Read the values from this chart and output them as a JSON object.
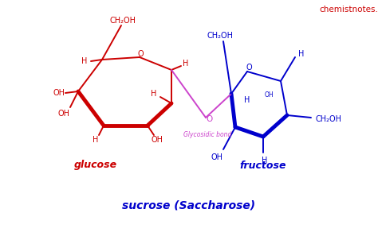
{
  "bg_color": "#ffffff",
  "website_text": "chemistnotes.com",
  "website_color": "#cc0000",
  "glucose_color": "#cc0000",
  "fructose_color": "#0000cc",
  "glycosidic_color": "#cc44cc",
  "label_glucose": "glucose",
  "label_fructose": "fructose",
  "label_sucrose": "sucrose (Saccharose)",
  "label_glycosidic": "Glycosidic bond",
  "figsize": [
    4.74,
    2.97
  ],
  "dpi": 100
}
